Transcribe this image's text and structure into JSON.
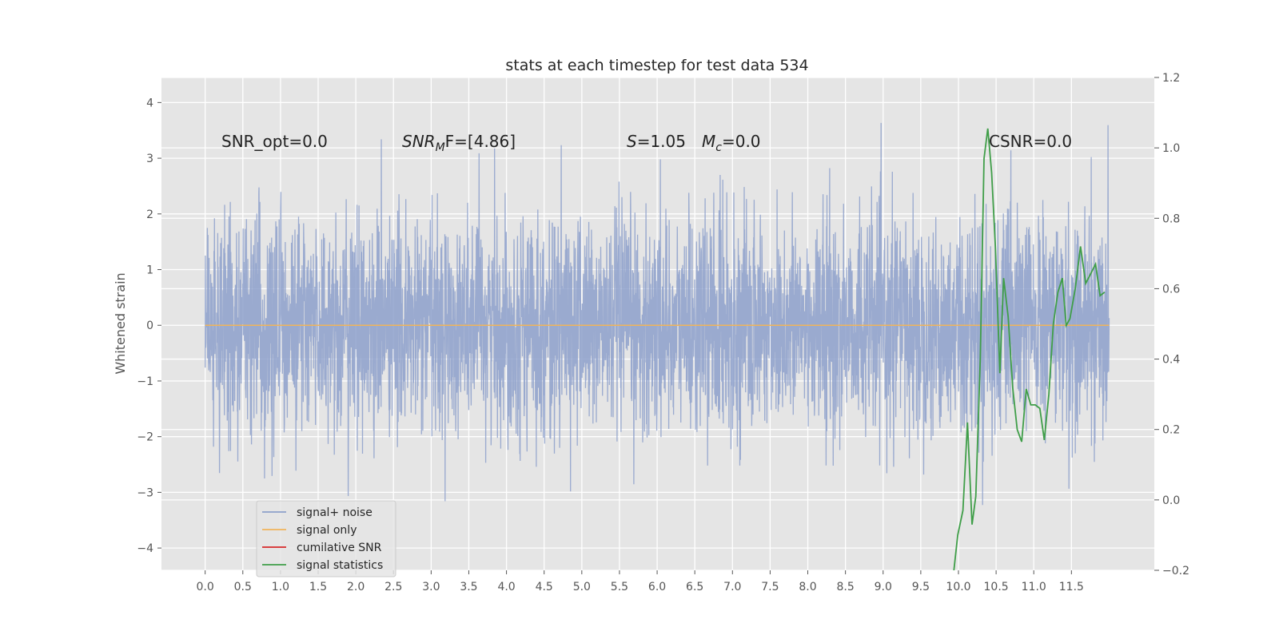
{
  "chart_data": {
    "type": "line",
    "title": "stats at each timestep for test data 534",
    "xlabel": "",
    "ylabel": "Whitened strain",
    "xlim": [
      -0.58,
      12.6
    ],
    "ylim": [
      -4.4,
      4.45
    ],
    "y2lim": [
      -0.2,
      1.2
    ],
    "x_ticks": [
      "0.0",
      "0.5",
      "1.0",
      "1.5",
      "2.0",
      "2.5",
      "3.0",
      "3.5",
      "4.0",
      "4.5",
      "5.0",
      "5.5",
      "6.0",
      "6.5",
      "7.0",
      "7.5",
      "8.0",
      "8.5",
      "9.0",
      "9.5",
      "10.0",
      "10.5",
      "11.0",
      "11.5"
    ],
    "y_ticks": [
      "4",
      "3",
      "2",
      "1",
      "0",
      "−1",
      "−2",
      "−3",
      "−4"
    ],
    "y_tick_values": [
      4,
      3,
      2,
      1,
      0,
      -1,
      -2,
      -3,
      -4
    ],
    "y2_ticks": [
      "1.2",
      "1.0",
      "0.8",
      "0.6",
      "0.4",
      "0.2",
      "0.0",
      "−0.2"
    ],
    "y2_tick_values": [
      1.2,
      1.0,
      0.8,
      0.6,
      0.4,
      0.2,
      0.0,
      -0.2
    ],
    "grid": true,
    "legend_placement": "lower-left",
    "annotations": {
      "snr_opt": "SNR_opt=0.0",
      "snr_mf_main": "SNR",
      "snr_mf_sub": "M",
      "snr_mf_rest": "F=[4.86]",
      "s_main": "S",
      "s_rest": "=1.05",
      "mc_main": "M",
      "mc_sub": "c",
      "mc_rest": "=0.0",
      "csnr": "CSNR=0.0"
    },
    "series": [
      {
        "name": "signal+ noise",
        "color": "#8da0cb",
        "x_range": [
          0.0,
          12.0
        ],
        "std": 0.95,
        "samples": 4096,
        "axis": "left"
      },
      {
        "name": "signal only",
        "color": "#f0b45a",
        "x": [
          0.0,
          12.0
        ],
        "y": [
          0.0,
          0.0
        ],
        "axis": "left"
      },
      {
        "name": "cumilative SNR",
        "color": "#d62728",
        "x": [],
        "y": [],
        "axis": "right"
      },
      {
        "name": "signal statistics",
        "color": "#3f9e48",
        "axis": "right",
        "x": [
          9.94,
          9.99,
          10.06,
          10.12,
          10.18,
          10.23,
          10.29,
          10.34,
          10.39,
          10.44,
          10.49,
          10.55,
          10.6,
          10.66,
          10.72,
          10.78,
          10.84,
          10.9,
          10.96,
          11.02,
          11.08,
          11.14,
          11.2,
          11.26,
          11.32,
          11.38,
          11.43,
          11.48,
          11.55,
          11.62,
          11.69,
          11.75,
          11.82,
          11.88,
          11.94
        ],
        "y": [
          -0.2,
          -0.1,
          -0.03,
          0.22,
          -0.07,
          0.01,
          0.4,
          0.97,
          1.055,
          0.93,
          0.72,
          0.36,
          0.63,
          0.52,
          0.32,
          0.2,
          0.165,
          0.315,
          0.27,
          0.27,
          0.26,
          0.17,
          0.3,
          0.5,
          0.59,
          0.63,
          0.495,
          0.515,
          0.6,
          0.72,
          0.615,
          0.64,
          0.67,
          0.58,
          0.59
        ]
      }
    ]
  }
}
